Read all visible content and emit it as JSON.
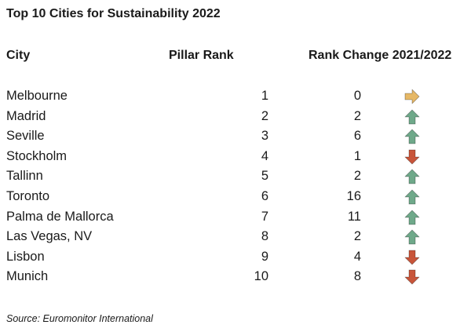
{
  "title": "Top 10 Cities for Sustainability 2022",
  "columns": {
    "city": "City",
    "pillar_rank": "Pillar Rank",
    "rank_change": "Rank Change 2021/2022"
  },
  "colors": {
    "up": "#6fa98a",
    "down": "#c8553a",
    "same": "#e6b866"
  },
  "rows": [
    {
      "city": "Melbourne",
      "pillar_rank": "1",
      "change": "0",
      "direction": "same",
      "icon": "arrow-right-icon"
    },
    {
      "city": "Madrid",
      "pillar_rank": "2",
      "change": "2",
      "direction": "up",
      "icon": "arrow-up-icon"
    },
    {
      "city": "Seville",
      "pillar_rank": "3",
      "change": "6",
      "direction": "up",
      "icon": "arrow-up-icon"
    },
    {
      "city": "Stockholm",
      "pillar_rank": "4",
      "change": "1",
      "direction": "down",
      "icon": "arrow-down-icon"
    },
    {
      "city": "Tallinn",
      "pillar_rank": "5",
      "change": "2",
      "direction": "up",
      "icon": "arrow-up-icon"
    },
    {
      "city": "Toronto",
      "pillar_rank": "6",
      "change": "16",
      "direction": "up",
      "icon": "arrow-up-icon"
    },
    {
      "city": "Palma de Mallorca",
      "pillar_rank": "7",
      "change": "11",
      "direction": "up",
      "icon": "arrow-up-icon"
    },
    {
      "city": "Las Vegas, NV",
      "pillar_rank": "8",
      "change": "2",
      "direction": "up",
      "icon": "arrow-up-icon"
    },
    {
      "city": "Lisbon",
      "pillar_rank": "9",
      "change": "4",
      "direction": "down",
      "icon": "arrow-down-icon"
    },
    {
      "city": "Munich",
      "pillar_rank": "10",
      "change": "8",
      "direction": "down",
      "icon": "arrow-down-icon"
    }
  ],
  "source": "Source: Euromonitor International"
}
